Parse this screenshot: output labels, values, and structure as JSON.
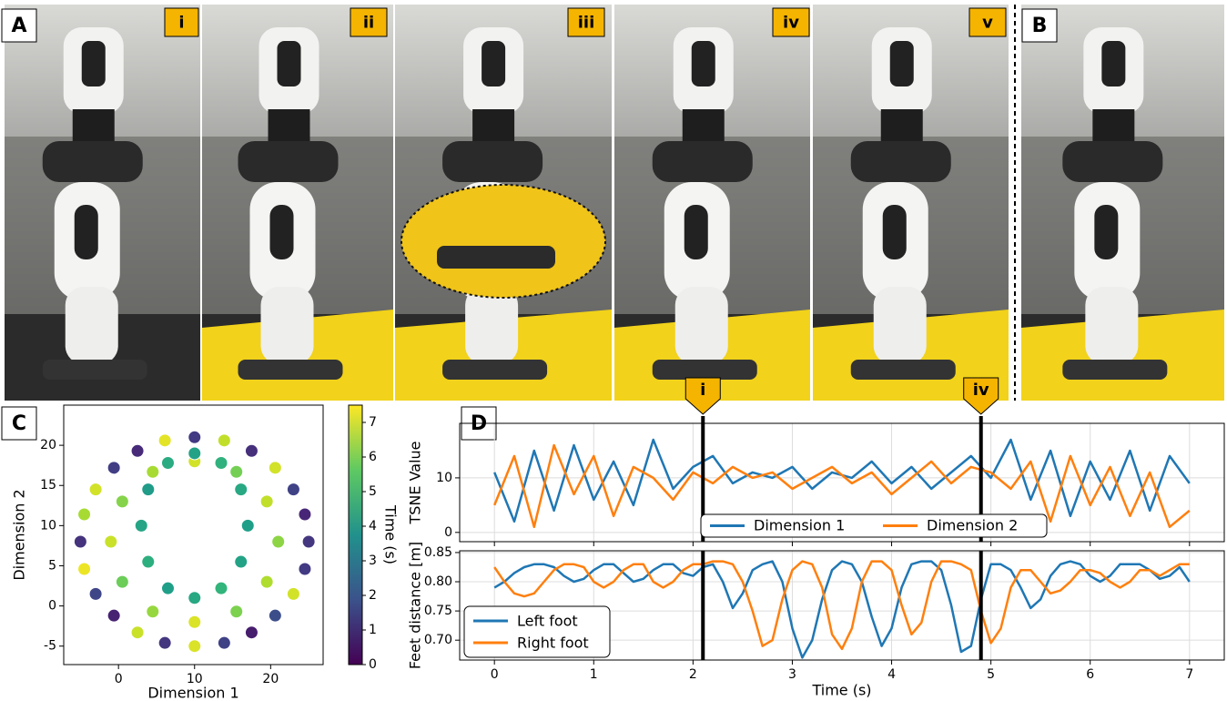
{
  "panel_labels": [
    "A",
    "B",
    "C",
    "D"
  ],
  "frame_labels": [
    "i",
    "ii",
    "iii",
    "iv",
    "v"
  ],
  "chart_data": [
    {
      "type": "scatter",
      "x_label": "Dimension 1",
      "y_label": "Dimension 2",
      "colorbar_label": "Time (s)",
      "colormap": "viridis",
      "clim": [
        0,
        7.5
      ],
      "cticks": [
        0,
        1,
        2,
        3,
        4,
        5,
        6,
        7
      ],
      "xlim": [
        -7.2,
        26.9
      ],
      "xticks": [
        0,
        10,
        20
      ],
      "ylim": [
        -7.3,
        25
      ],
      "yticks": [
        -5,
        0,
        5,
        10,
        15,
        20
      ],
      "x": [
        25,
        24.5,
        23,
        20.6,
        17.5,
        13.9,
        10,
        6.1,
        2.5,
        -0.6,
        -3,
        -4.5,
        -5,
        -4.5,
        -3,
        -0.6,
        2.5,
        6.1,
        10,
        13.9,
        17.5,
        20.6,
        23,
        24.5,
        21,
        19.5,
        15.5,
        10,
        4.5,
        0.5,
        -1,
        0.5,
        4.5,
        10,
        15.5,
        19.5,
        17,
        16.1,
        13.5,
        10,
        6.5,
        3.9,
        3,
        3.9,
        6.5,
        10,
        13.5,
        16.1
      ],
      "y": [
        8,
        11.4,
        14.5,
        17.2,
        19.3,
        20.6,
        21,
        20.6,
        19.3,
        17.2,
        14.5,
        11.4,
        8,
        4.6,
        1.5,
        -1.2,
        -3.3,
        -4.6,
        -5,
        -4.6,
        -3.3,
        -1.2,
        1.5,
        4.6,
        8,
        13,
        16.7,
        18,
        16.7,
        13,
        8,
        3,
        -0.7,
        -2,
        -0.7,
        3,
        10,
        14.5,
        17.8,
        19,
        17.8,
        14.5,
        10,
        5.5,
        2.2,
        1,
        2.2,
        5.5
      ],
      "c": [
        1.2,
        0.8,
        1.5,
        7,
        1,
        6.8,
        1.3,
        7.2,
        0.9,
        1.4,
        7,
        6.5,
        1.1,
        7.3,
        1.6,
        0.7,
        6.9,
        1.2,
        7.1,
        1.5,
        0.6,
        1.8,
        7,
        1.3,
        6.2,
        6.8,
        5.9,
        7,
        6.5,
        6.1,
        6.9,
        5.8,
        6.3,
        7.1,
        6,
        6.6,
        4.2,
        4.5,
        4.8,
        4.3,
        4.6,
        4.1,
        4.4,
        4.7,
        4.2,
        4.5,
        4.9,
        4.3
      ]
    },
    {
      "type": "line",
      "y_label": "TSNE Value",
      "grid": true,
      "xtick_labels": false,
      "legend": "lower center",
      "xlim": [
        -0.35,
        7.35
      ],
      "xticks": [
        0,
        1,
        2,
        3,
        4,
        5,
        6,
        7
      ],
      "ylim": [
        -1.7,
        20
      ],
      "yticks": [
        0,
        10
      ],
      "annotations": [
        {
          "x": 2.1,
          "label": "i"
        },
        {
          "x": 4.9,
          "label": "iv"
        }
      ],
      "x": [
        0,
        0.2,
        0.4,
        0.6,
        0.8,
        1,
        1.2,
        1.4,
        1.6,
        1.8,
        2,
        2.2,
        2.4,
        2.6,
        2.8,
        3,
        3.2,
        3.4,
        3.6,
        3.8,
        4,
        4.2,
        4.4,
        4.6,
        4.8,
        5,
        5.2,
        5.4,
        5.6,
        5.8,
        6,
        6.2,
        6.4,
        6.6,
        6.8,
        7
      ],
      "series": [
        {
          "name": "Dimension 1",
          "color": "#1f77b4",
          "values": [
            11,
            2,
            15,
            4,
            16,
            6,
            13,
            5,
            17,
            8,
            12,
            14,
            9,
            11,
            10,
            12,
            8,
            11,
            10,
            13,
            9,
            12,
            8,
            11,
            14,
            10,
            17,
            6,
            15,
            3,
            13,
            6,
            15,
            4,
            14,
            9
          ]
        },
        {
          "name": "Dimension 2",
          "color": "#ff7f0e",
          "values": [
            5,
            14,
            1,
            16,
            7,
            14,
            3,
            12,
            10,
            6,
            11,
            9,
            12,
            10,
            11,
            8,
            10,
            12,
            9,
            11,
            7,
            10,
            13,
            9,
            12,
            11,
            8,
            13,
            2,
            14,
            5,
            12,
            3,
            11,
            1,
            4
          ]
        }
      ]
    },
    {
      "type": "line",
      "x_label": "Time (s)",
      "y_label": "Feet distance [m]",
      "grid": true,
      "legend": "lower left",
      "xlim": [
        -0.35,
        7.35
      ],
      "xticks": [
        0,
        1,
        2,
        3,
        4,
        5,
        6,
        7
      ],
      "ylim": [
        0.666,
        0.853
      ],
      "yticks": [
        {
          "value": 0.7,
          "label": "0.70"
        },
        0.75,
        {
          "value": 0.8,
          "label": "0.80"
        },
        0.85
      ],
      "vlines": [
        2.1,
        4.9
      ],
      "x": [
        0,
        0.1,
        0.2,
        0.3,
        0.4,
        0.5,
        0.6,
        0.7,
        0.8,
        0.9,
        1,
        1.1,
        1.2,
        1.3,
        1.4,
        1.5,
        1.6,
        1.7,
        1.8,
        1.9,
        2,
        2.1,
        2.2,
        2.3,
        2.4,
        2.5,
        2.6,
        2.7,
        2.8,
        2.9,
        3,
        3.1,
        3.2,
        3.3,
        3.4,
        3.5,
        3.6,
        3.7,
        3.8,
        3.9,
        4,
        4.1,
        4.2,
        4.3,
        4.4,
        4.5,
        4.6,
        4.7,
        4.8,
        4.9,
        5,
        5.1,
        5.2,
        5.3,
        5.4,
        5.5,
        5.6,
        5.7,
        5.8,
        5.9,
        6,
        6.1,
        6.2,
        6.3,
        6.4,
        6.5,
        6.6,
        6.7,
        6.8,
        6.9,
        7
      ],
      "series": [
        {
          "name": "Left foot",
          "color": "#1f77b4",
          "values": [
            0.79,
            0.8,
            0.815,
            0.825,
            0.83,
            0.83,
            0.825,
            0.81,
            0.8,
            0.805,
            0.82,
            0.83,
            0.83,
            0.815,
            0.8,
            0.805,
            0.82,
            0.83,
            0.83,
            0.815,
            0.81,
            0.825,
            0.83,
            0.8,
            0.755,
            0.78,
            0.82,
            0.83,
            0.835,
            0.8,
            0.72,
            0.67,
            0.7,
            0.77,
            0.82,
            0.835,
            0.83,
            0.8,
            0.74,
            0.69,
            0.72,
            0.79,
            0.83,
            0.835,
            0.835,
            0.82,
            0.76,
            0.68,
            0.69,
            0.77,
            0.83,
            0.83,
            0.82,
            0.79,
            0.755,
            0.77,
            0.81,
            0.83,
            0.835,
            0.83,
            0.81,
            0.8,
            0.81,
            0.83,
            0.83,
            0.83,
            0.82,
            0.805,
            0.81,
            0.825,
            0.8
          ]
        },
        {
          "name": "Right foot",
          "color": "#ff7f0e",
          "values": [
            0.825,
            0.8,
            0.78,
            0.775,
            0.78,
            0.8,
            0.82,
            0.83,
            0.83,
            0.825,
            0.8,
            0.79,
            0.8,
            0.82,
            0.83,
            0.83,
            0.8,
            0.79,
            0.8,
            0.82,
            0.83,
            0.83,
            0.835,
            0.835,
            0.83,
            0.8,
            0.75,
            0.69,
            0.7,
            0.77,
            0.82,
            0.835,
            0.83,
            0.79,
            0.71,
            0.685,
            0.72,
            0.8,
            0.835,
            0.835,
            0.82,
            0.76,
            0.71,
            0.73,
            0.8,
            0.835,
            0.835,
            0.83,
            0.82,
            0.75,
            0.695,
            0.72,
            0.79,
            0.82,
            0.82,
            0.8,
            0.78,
            0.785,
            0.8,
            0.82,
            0.82,
            0.815,
            0.8,
            0.79,
            0.8,
            0.82,
            0.82,
            0.81,
            0.82,
            0.83,
            0.83
          ]
        }
      ]
    }
  ]
}
